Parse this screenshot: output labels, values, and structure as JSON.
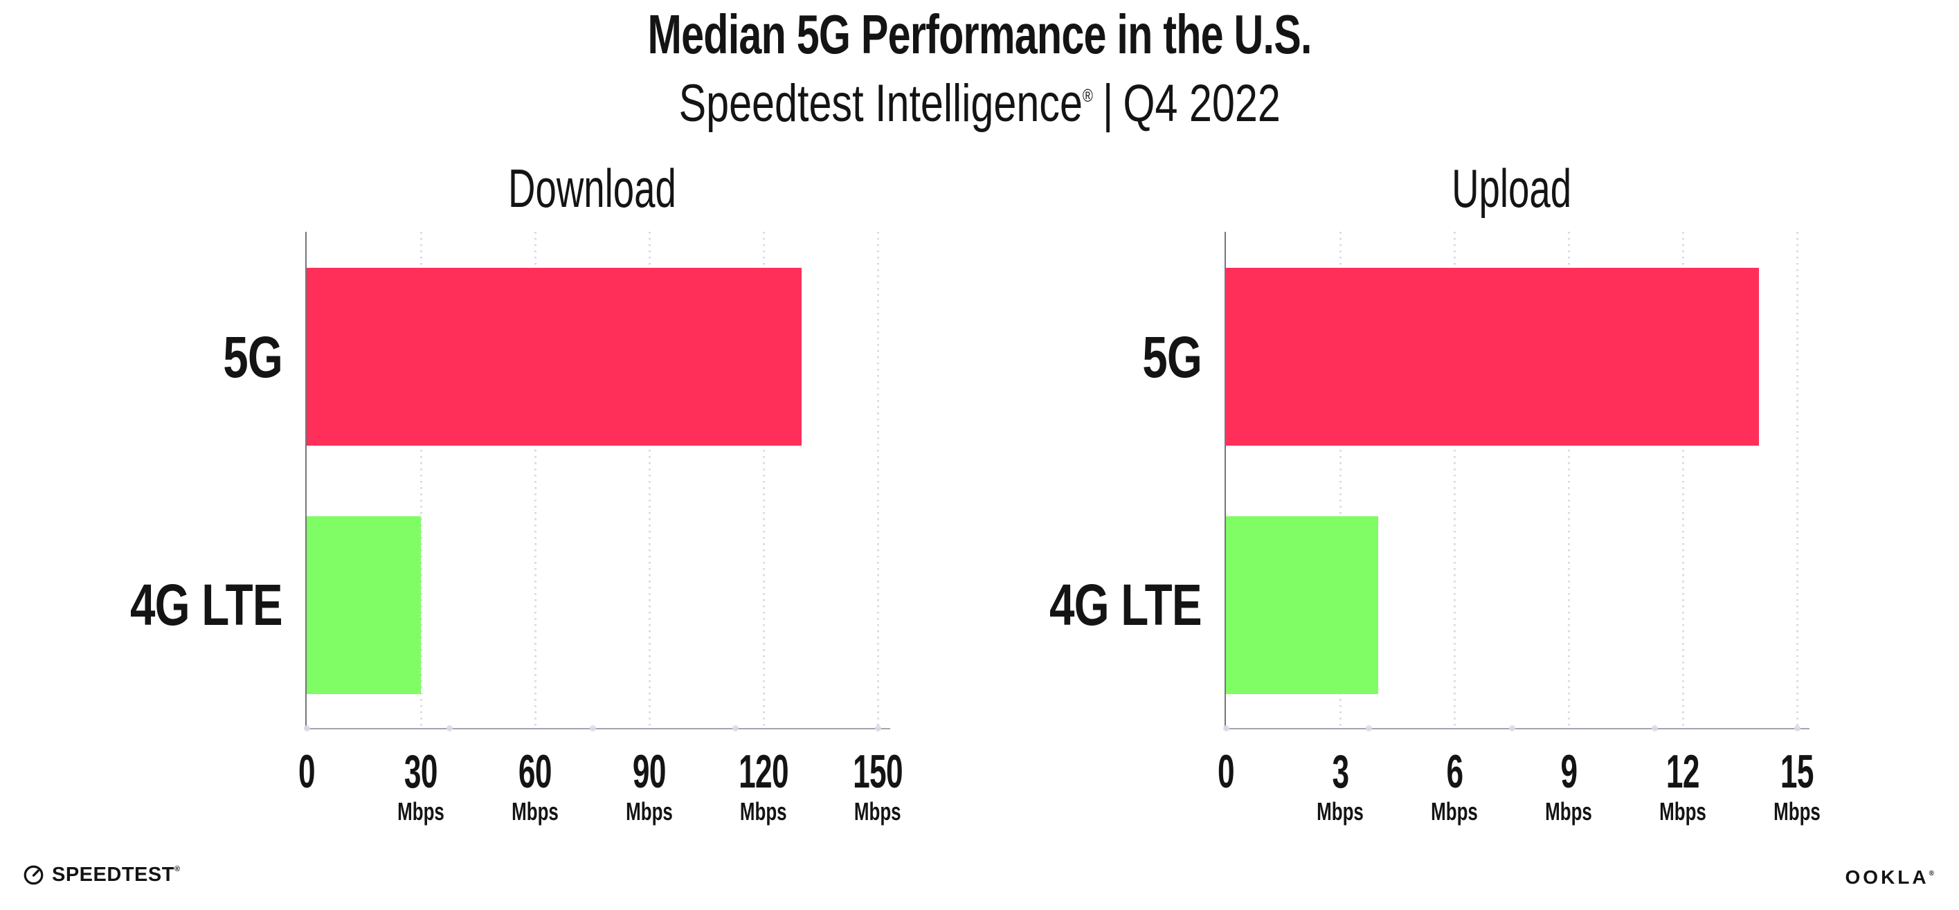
{
  "header": {
    "title": "Median 5G Performance in the U.S.",
    "subtitle_brand": "Speedtest Intelligence",
    "subtitle_reg": "®",
    "subtitle_sep": "|",
    "subtitle_period": "Q4 2022"
  },
  "chart_data": [
    {
      "type": "bar",
      "orientation": "horizontal",
      "title": "Download",
      "categories": [
        "5G",
        "4G LTE"
      ],
      "values": [
        130,
        30
      ],
      "unit": "Mbps",
      "xlim": [
        0,
        150
      ],
      "xticks": [
        0,
        30,
        60,
        90,
        120,
        150
      ],
      "bar_colors": [
        "#ff2f5a",
        "#80fc64"
      ],
      "grid": "dotted-vertical-at-ticks",
      "legend": "none"
    },
    {
      "type": "bar",
      "orientation": "horizontal",
      "title": "Upload",
      "categories": [
        "5G",
        "4G LTE"
      ],
      "values": [
        14,
        4
      ],
      "unit": "Mbps",
      "xlim": [
        0,
        15
      ],
      "xticks": [
        0,
        3,
        6,
        9,
        12,
        15
      ],
      "bar_colors": [
        "#ff2f5a",
        "#80fc64"
      ],
      "grid": "dotted-vertical-at-ticks",
      "legend": "none"
    }
  ],
  "footer": {
    "speedtest_label": "SPEEDTEST",
    "speedtest_reg": "®",
    "ookla_label": "OOKLA",
    "ookla_reg": "®"
  },
  "colors": {
    "bar_5g": "#ff2f5a",
    "bar_4g_lte": "#80fc64",
    "gridline": "#d9d9e6",
    "axis": "#a4a4ac",
    "text": "#141414",
    "background": "#ffffff"
  }
}
